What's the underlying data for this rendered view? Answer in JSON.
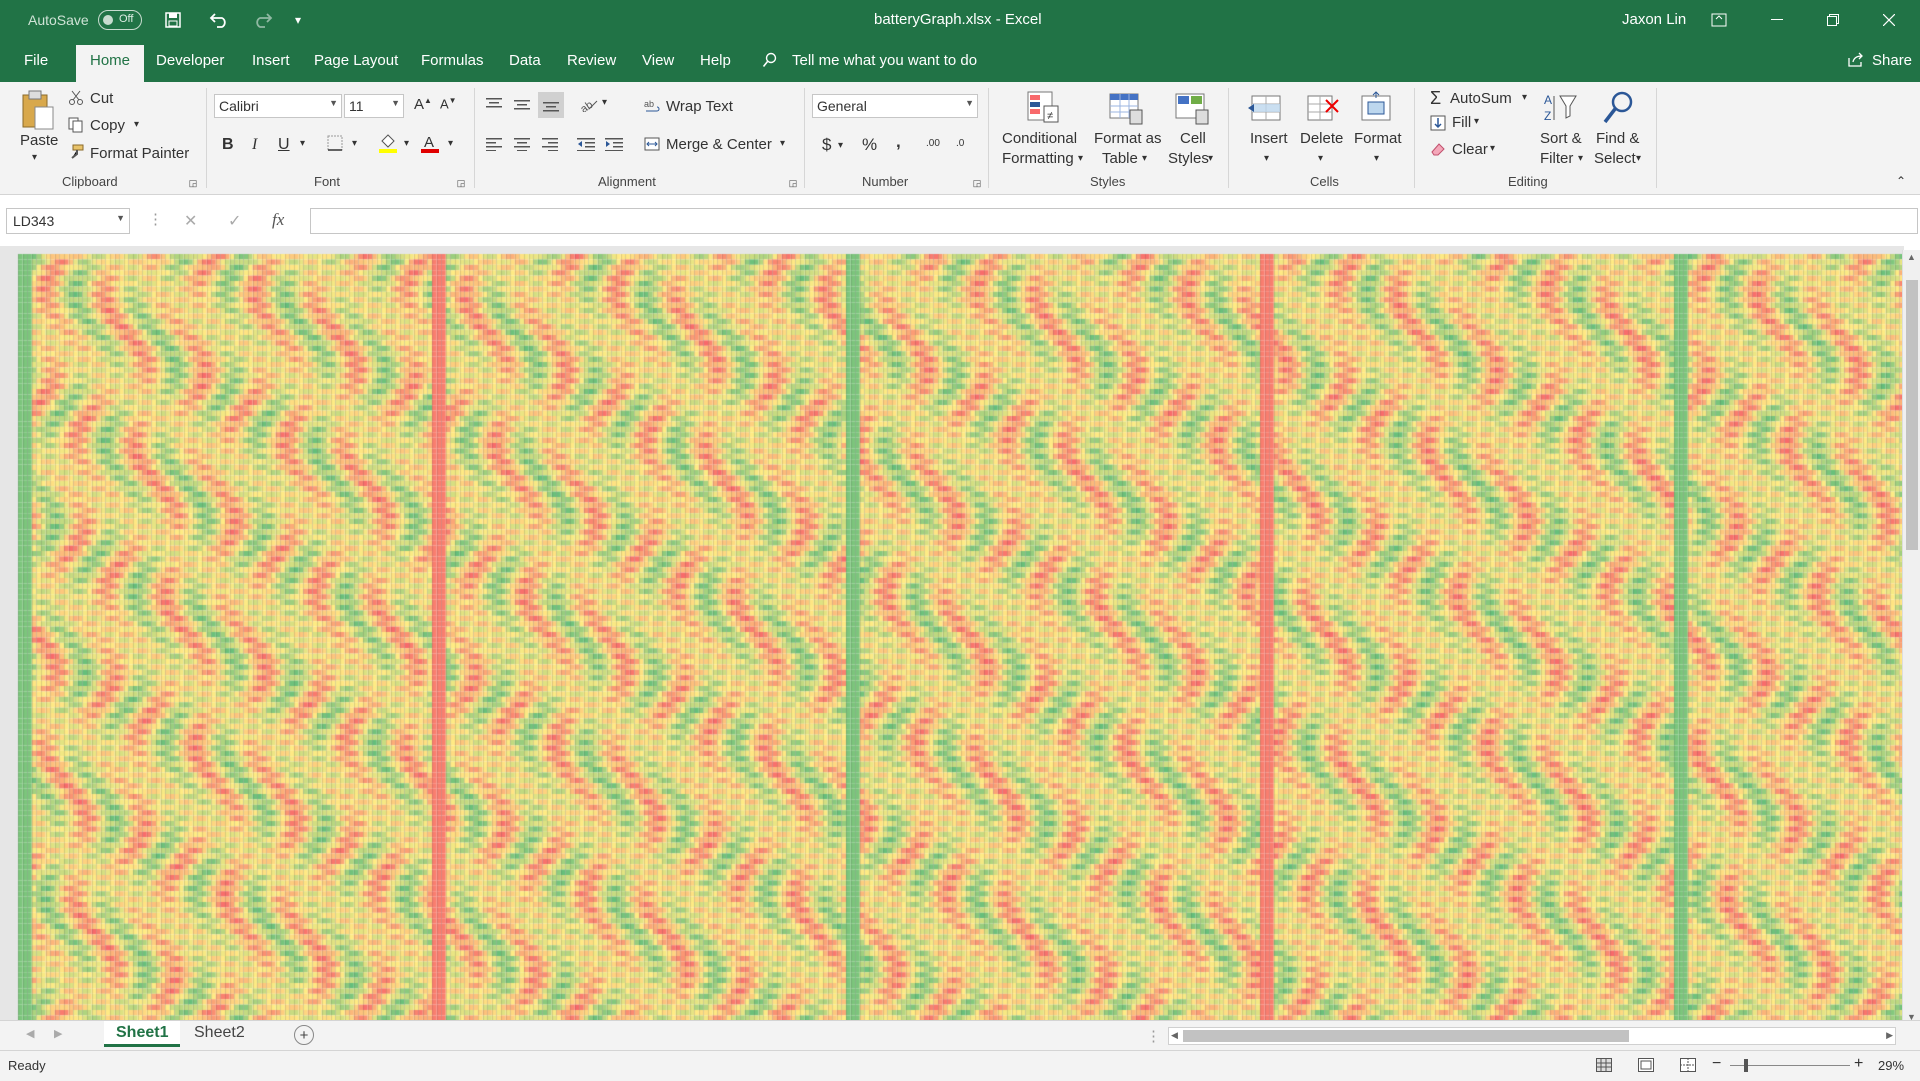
{
  "titlebar": {
    "autosave_label": "AutoSave",
    "autosave_state": "Off",
    "filename": "batteryGraph.xlsx",
    "separator": "-",
    "app_name": "Excel",
    "user_name": "Jaxon Lin"
  },
  "menu": {
    "items": [
      "File",
      "Home",
      "Developer",
      "Insert",
      "Page Layout",
      "Formulas",
      "Data",
      "Review",
      "View",
      "Help"
    ],
    "active": "Home",
    "tell_me": "Tell me what you want to do",
    "share": "Share"
  },
  "ribbon": {
    "clipboard": {
      "label": "Clipboard",
      "paste": "Paste",
      "cut": "Cut",
      "copy": "Copy",
      "format_painter": "Format Painter"
    },
    "font": {
      "label": "Font",
      "family": "Calibri",
      "size": "11",
      "bold": "B",
      "italic": "I",
      "underline": "U"
    },
    "alignment": {
      "label": "Alignment",
      "wrap_text": "Wrap Text",
      "merge_center": "Merge & Center"
    },
    "number": {
      "label": "Number",
      "format": "General",
      "currency": "$",
      "percent": "%",
      "comma": ",",
      "inc_decimal": ".00",
      "dec_decimal": ".0"
    },
    "styles": {
      "label": "Styles",
      "conditional_line1": "Conditional",
      "conditional_line2": "Formatting",
      "format_table_line1": "Format as",
      "format_table_line2": "Table",
      "cell_styles_line1": "Cell",
      "cell_styles_line2": "Styles"
    },
    "cells": {
      "label": "Cells",
      "insert": "Insert",
      "delete": "Delete",
      "format": "Format"
    },
    "editing": {
      "label": "Editing",
      "autosum": "AutoSum",
      "fill": "Fill",
      "clear": "Clear",
      "sort_line1": "Sort &",
      "sort_line2": "Filter",
      "find_line1": "Find &",
      "find_line2": "Select"
    }
  },
  "formula_bar": {
    "name_box": "LD343",
    "fx": "fx",
    "cancel": "✕",
    "enter": "✓",
    "formula": ""
  },
  "sheets": {
    "tabs": [
      "Sheet1",
      "Sheet2"
    ],
    "active": "Sheet1"
  },
  "status": {
    "ready": "Ready",
    "zoom": "29%"
  },
  "colors": {
    "excel_green": "#217346",
    "heat_red": "#f8696b",
    "heat_yellow": "#ffeb84",
    "heat_green": "#63be7b"
  }
}
